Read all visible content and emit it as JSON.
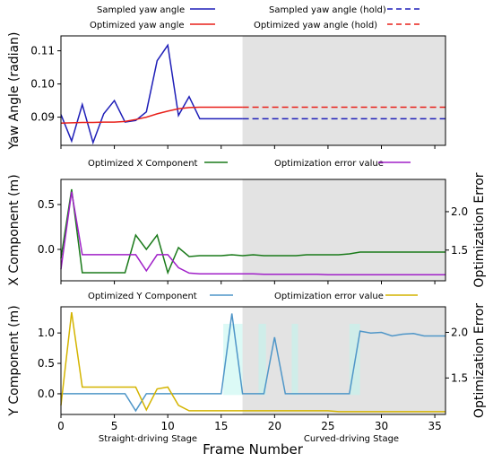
{
  "chart_data": [
    {
      "type": "line",
      "ylabel": "Yaw Angle (radian)",
      "xlim": [
        0,
        36
      ],
      "ylim": [
        0.0815,
        0.1145
      ],
      "yticks": [
        0.09,
        0.1,
        0.11
      ],
      "ytick_labels": [
        "0.09",
        "0.10",
        "0.11"
      ],
      "shaded_region": [
        17,
        36
      ],
      "legend_placement": "top",
      "series": [
        {
          "name": "Sampled yaw angle",
          "color": "#1f1fb8",
          "dash": "solid",
          "x": [
            0,
            1,
            2,
            3,
            4,
            5,
            6,
            7,
            8,
            9,
            10,
            11,
            12,
            13,
            14,
            15,
            16,
            17
          ],
          "y": [
            0.0908,
            0.0828,
            0.0938,
            0.0823,
            0.091,
            0.095,
            0.0885,
            0.089,
            0.0916,
            0.107,
            0.1117,
            0.0905,
            0.0962,
            0.0895,
            0.0895,
            0.0895,
            0.0895,
            0.0895
          ]
        },
        {
          "name": "Optimized yaw angle",
          "color": "#e8201a",
          "dash": "solid",
          "x": [
            0,
            1,
            2,
            3,
            4,
            5,
            6,
            7,
            8,
            9,
            10,
            11,
            12,
            13,
            14,
            15,
            16,
            17
          ],
          "y": [
            0.0882,
            0.0883,
            0.0884,
            0.0884,
            0.0885,
            0.0885,
            0.0887,
            0.0893,
            0.09,
            0.091,
            0.0918,
            0.0925,
            0.0929,
            0.093,
            0.093,
            0.093,
            0.093,
            0.093
          ]
        },
        {
          "name": "Sampled yaw angle (hold)",
          "color": "#1f1fb8",
          "dash": "dashed",
          "x": [
            17,
            36
          ],
          "y": [
            0.0895,
            0.0895
          ]
        },
        {
          "name": "Optimized yaw angle (hold)",
          "color": "#e8201a",
          "dash": "dashed",
          "x": [
            17,
            36
          ],
          "y": [
            0.093,
            0.093
          ]
        }
      ]
    },
    {
      "type": "line",
      "ylabel": "X Component (m)",
      "ylabel_right": "Optimization Error",
      "xlim": [
        0,
        36
      ],
      "ylim": [
        -0.35,
        0.78
      ],
      "yticks": [
        0.0,
        0.5
      ],
      "ytick_labels": [
        "0.0",
        "0.5"
      ],
      "ylim_right": [
        1.1,
        2.42
      ],
      "yticks_right": [
        1.5,
        2.0
      ],
      "ytick_labels_right": [
        "1.5",
        "2.0"
      ],
      "shaded_region": [
        17,
        36
      ],
      "legend_placement": "top",
      "series": [
        {
          "name": "Optimized X Component",
          "color": "#1a7a1a",
          "axis": "left",
          "x": [
            0,
            1,
            2,
            3,
            4,
            5,
            6,
            7,
            8,
            9,
            10,
            11,
            12,
            13,
            14,
            15,
            16,
            17,
            18,
            19,
            20,
            21,
            22,
            23,
            24,
            25,
            26,
            27,
            28,
            29,
            30,
            31,
            32,
            33,
            34,
            35,
            36
          ],
          "y": [
            -0.1,
            0.67,
            -0.26,
            -0.26,
            -0.26,
            -0.26,
            -0.26,
            0.16,
            0.0,
            0.16,
            -0.26,
            0.02,
            -0.08,
            -0.07,
            -0.07,
            -0.07,
            -0.06,
            -0.07,
            -0.06,
            -0.07,
            -0.07,
            -0.07,
            -0.07,
            -0.06,
            -0.06,
            -0.06,
            -0.06,
            -0.05,
            -0.03,
            -0.03,
            -0.03,
            -0.03,
            -0.03,
            -0.03,
            -0.03,
            -0.03,
            -0.03
          ]
        },
        {
          "name": "Optimization error value",
          "color": "#a020c8",
          "axis": "right",
          "x": [
            0,
            1,
            2,
            3,
            4,
            5,
            6,
            7,
            8,
            9,
            10,
            11,
            12,
            13,
            14,
            15,
            16,
            17,
            18,
            19,
            20,
            21,
            22,
            23,
            24,
            25,
            26,
            27,
            28,
            29,
            30,
            31,
            32,
            33,
            34,
            35,
            36
          ],
          "y": [
            1.25,
            2.26,
            1.44,
            1.44,
            1.44,
            1.44,
            1.44,
            1.44,
            1.23,
            1.44,
            1.44,
            1.27,
            1.2,
            1.19,
            1.19,
            1.19,
            1.19,
            1.19,
            1.19,
            1.185,
            1.185,
            1.185,
            1.185,
            1.185,
            1.185,
            1.18,
            1.18,
            1.18,
            1.18,
            1.18,
            1.18,
            1.18,
            1.18,
            1.18,
            1.18,
            1.18,
            1.18
          ]
        }
      ]
    },
    {
      "type": "line",
      "ylabel": "Y Component (m)",
      "ylabel_right": "Optimization Error",
      "xlabel": "Frame Number",
      "xlim": [
        0,
        36
      ],
      "ylim": [
        -0.34,
        1.43
      ],
      "yticks": [
        0.0,
        0.5,
        1.0
      ],
      "ytick_labels": [
        "0.0",
        "0.5",
        "1.0"
      ],
      "ylim_right": [
        1.1,
        2.28
      ],
      "yticks_right": [
        1.5,
        2.0
      ],
      "ytick_labels_right": [
        "1.5",
        "2.0"
      ],
      "xticks": [
        0,
        5,
        10,
        15,
        20,
        25,
        30,
        35
      ],
      "xtick_labels": [
        "0",
        "5",
        "10",
        "15",
        "20",
        "25",
        "30",
        "35"
      ],
      "shaded_region": [
        17,
        36
      ],
      "legend_placement": "top",
      "annotations": [
        "Straight-driving Stage",
        "Curved-driving Stage"
      ],
      "series": [
        {
          "name": "Optimized Y Component",
          "color": "#4f96c8",
          "axis": "left",
          "x": [
            0,
            1,
            2,
            3,
            4,
            5,
            6,
            7,
            8,
            9,
            10,
            11,
            12,
            13,
            14,
            15,
            16,
            17,
            18,
            19,
            20,
            21,
            22,
            23,
            24,
            25,
            26,
            27,
            28,
            29,
            30,
            31,
            32,
            33,
            34,
            35,
            36
          ],
          "y": [
            0.0,
            0.0,
            0.0,
            0.0,
            0.0,
            0.0,
            0.0,
            -0.28,
            0.0,
            0.0,
            0.0,
            0.0,
            0.0,
            0.0,
            0.0,
            0.0,
            1.32,
            0.0,
            0.0,
            0.0,
            0.93,
            0.0,
            0.0,
            0.0,
            0.0,
            0.0,
            0.0,
            0.0,
            1.03,
            1.0,
            1.01,
            0.95,
            0.98,
            0.99,
            0.95,
            0.95,
            0.95
          ]
        },
        {
          "name": "Optimization error value",
          "color": "#d4b400",
          "axis": "right",
          "x": [
            0,
            1,
            2,
            3,
            4,
            5,
            6,
            7,
            8,
            9,
            10,
            11,
            12,
            13,
            14,
            15,
            16,
            17,
            18,
            19,
            20,
            21,
            22,
            23,
            24,
            25,
            26,
            27,
            28,
            29,
            30,
            31,
            32,
            33,
            34,
            35,
            36
          ],
          "y": [
            1.2,
            2.22,
            1.4,
            1.4,
            1.4,
            1.4,
            1.4,
            1.4,
            1.15,
            1.38,
            1.4,
            1.2,
            1.14,
            1.14,
            1.14,
            1.14,
            1.14,
            1.14,
            1.14,
            1.14,
            1.14,
            1.14,
            1.14,
            1.14,
            1.14,
            1.14,
            1.13,
            1.13,
            1.13,
            1.13,
            1.13,
            1.13,
            1.13,
            1.13,
            1.13,
            1.13,
            1.13
          ]
        }
      ]
    }
  ]
}
